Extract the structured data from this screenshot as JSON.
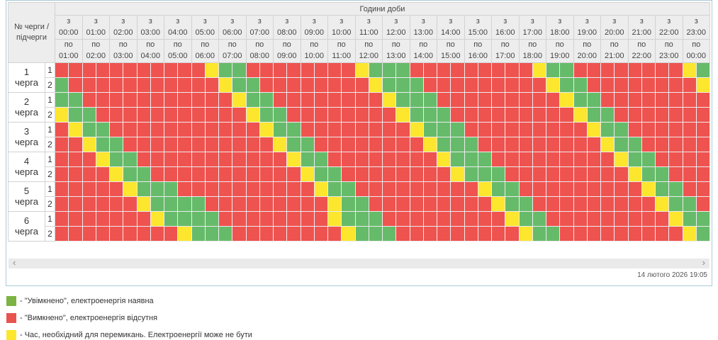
{
  "table": {
    "corner_label": "№ черги / підчерги",
    "hours_title": "Години доби",
    "from_prefix": "з",
    "to_prefix": "по",
    "hours_from": [
      "00:00",
      "01:00",
      "02:00",
      "03:00",
      "04:00",
      "05:00",
      "06:00",
      "07:00",
      "08:00",
      "09:00",
      "10:00",
      "11:00",
      "12:00",
      "13:00",
      "14:00",
      "15:00",
      "16:00",
      "17:00",
      "18:00",
      "19:00",
      "20:00",
      "21:00",
      "22:00",
      "23:00"
    ],
    "hours_to": [
      "01:00",
      "02:00",
      "03:00",
      "04:00",
      "05:00",
      "06:00",
      "07:00",
      "08:00",
      "09:00",
      "10:00",
      "11:00",
      "12:00",
      "13:00",
      "14:00",
      "15:00",
      "16:00",
      "17:00",
      "18:00",
      "19:00",
      "20:00",
      "21:00",
      "22:00",
      "23:00",
      "00:00"
    ],
    "queues": [
      "1",
      "2",
      "3",
      "4",
      "5",
      "6"
    ],
    "queue_word": "черга",
    "subqueues": [
      "1",
      "2"
    ]
  },
  "grid": {
    "cell_minutes": 30,
    "states": {
      "G": "on",
      "R": "off",
      "Y": "switching"
    },
    "rows": [
      "RRRRRRRRRRRYGGRRRRRRRRYGGGRRRRRRRRRYGGRRRRRRRRYG",
      "GRRRRRRRRRRRYGGRRRRRRRRYGGGRRRRRRRRRYGGRRRRRRRRY",
      "GGRRRRRRRRRRRYGGRRRRRRRRYGGGRRRRRRRRRYGGRRRRRRRR",
      "YGGRRRRRRRRRRRYGGRRRRRRRRYGGGRRRRRRRRRYGGRRRRRRR",
      "RYGGRRRRRRRRRRRYGGRRRRRRRRYGGGRRRRRRRRRYGGRRRRRR",
      "RRYGGRRRRRRRRRRRYGGRRRRRRRRYGGGRRRRRRRRRYGGRRRRR",
      "RRRYGGRRRRRRRRRRRYGGRRRRRRRRYGGGRRRRRRRRRYGGRRRR",
      "RRRRYGGRRRRRRRRRRRYGGRRRRRRRRYGGGRRRRRRRRRYGGRRR",
      "RRRRRYGGGRRRRRRRRRRYGGRRRRRRRRRYGGRRRRRRRRRYGGRR",
      "RRRRRRYGGGGRRRRRRRRRYGGRRRRRRRRRYGGRRRRRRRRRYGGR",
      "RRRRRRRYGGGGRRRRRRRRYGGGRRRRRRRRRYGGRRRRRRRRRYGG",
      "RRRRRRRRRYGGGRRRRRRRRYGGGRRRRRRRRRYGGRRRRRRRRRYG"
    ]
  },
  "colors": {
    "on": "#66bb6a",
    "off": "#ef5350",
    "switching": "#fde62e",
    "legend_on": "#7cb342",
    "legend_off": "#e8534f",
    "legend_switching": "#fde62e",
    "panel_border": "#a9cbd6"
  },
  "footer": {
    "scroll_left": "‹",
    "scroll_right": "›",
    "timestamp": "14 лютого 2026 19:05"
  },
  "legend": {
    "items": [
      {
        "state": "on",
        "text": "- \"Увімкнено\", електроенергія наявна"
      },
      {
        "state": "off",
        "text": "- \"Вимкнено\", електроенергія відсутня"
      },
      {
        "state": "switching",
        "text": "- Час, необхідний для перемикань. Електроенергії може не бути"
      }
    ]
  }
}
